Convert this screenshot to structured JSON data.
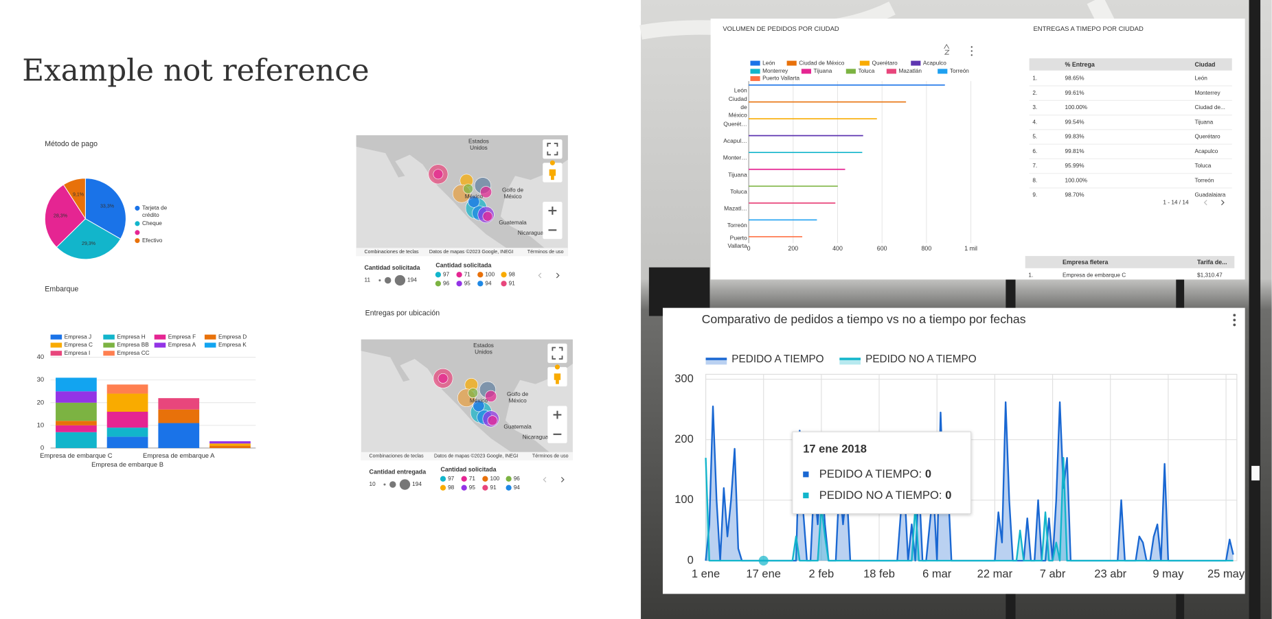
{
  "slide_title": "Example not reference",
  "chart_data": [
    {
      "type": "pie",
      "title": "Método de pago",
      "categories": [
        "Tarjeta de crédito",
        "Cheque",
        null,
        "Efectivo"
      ],
      "values": [
        33.3,
        29.3,
        28.3,
        9.1
      ],
      "value_labels": [
        "33,3%",
        "29,3%",
        "28,3%",
        "9,1%"
      ],
      "colors": [
        "#1a73e8",
        "#12b5cb",
        "#e52592",
        "#e8710a"
      ]
    },
    {
      "type": "stacked_bar",
      "title": "Embarque",
      "categories": [
        "Empresa de embarque C",
        "Empresa de embarque B",
        "Empresa de embarque A",
        null
      ],
      "series": [
        {
          "name": "Empresa J",
          "color": "#1a73e8",
          "values": [
            0,
            5,
            11,
            0
          ]
        },
        {
          "name": "Empresa H",
          "color": "#12b5cb",
          "values": [
            7,
            4,
            0,
            0
          ]
        },
        {
          "name": "Empresa F",
          "color": "#e52592",
          "values": [
            3,
            7,
            0,
            0
          ]
        },
        {
          "name": "Empresa D",
          "color": "#e8710a",
          "values": [
            2,
            0,
            6,
            1
          ]
        },
        {
          "name": "Empresa C",
          "color": "#f9ab00",
          "values": [
            0,
            8,
            0,
            1
          ]
        },
        {
          "name": "Empresa BB",
          "color": "#7cb342",
          "values": [
            8,
            0,
            0,
            0
          ]
        },
        {
          "name": "Empresa A",
          "color": "#9334e6",
          "values": [
            5,
            0,
            0,
            1
          ]
        },
        {
          "name": "Empresa K",
          "color": "#12a4f0",
          "values": [
            6,
            0,
            0,
            0
          ]
        },
        {
          "name": "Empresa I",
          "color": "#e8467c",
          "values": [
            0,
            0,
            5,
            0
          ]
        },
        {
          "name": "Empresa CC",
          "color": "#ff7f50",
          "values": [
            0,
            4,
            0,
            0
          ]
        }
      ],
      "ylim": [
        0,
        40
      ],
      "yticks": [
        0,
        10,
        20,
        30,
        40
      ],
      "grid": true
    },
    {
      "type": "hbar",
      "title": "VOLUMEN DE PEDIDOS POR CIUDAD",
      "categories": [
        "León",
        "Ciudad de México",
        "Querét…",
        "Acapul…",
        "Monter…",
        "Tijuana",
        "Toluca",
        "Mazatl…",
        "Torreón",
        "Puerto Vallarta"
      ],
      "legend": [
        "León",
        "Ciudad de México",
        "Querétaro",
        "Acapulco",
        "Monterrey",
        "Tijuana",
        "Toluca",
        "Mazatlán",
        "Torreón",
        "Puerto Vallarta"
      ],
      "colors": [
        "#1a73e8",
        "#e8710a",
        "#f9ab00",
        "#5e35b1",
        "#12b5cb",
        "#e52592",
        "#7cb342",
        "#e8467c",
        "#1ea0f0",
        "#ff7043"
      ],
      "values": [
        883,
        708,
        577,
        515,
        511,
        434,
        401,
        390,
        307,
        241
      ],
      "xlim": [
        0,
        1000
      ],
      "xticks": [
        0,
        200,
        400,
        600,
        800,
        {
          "value": 1000,
          "label": "1 mil"
        }
      ],
      "grid": true
    },
    {
      "type": "line",
      "title": "Comparativo de pedidos a tiempo vs no a tiempo por fechas",
      "x": [
        0,
        1,
        2,
        3,
        4,
        5,
        6,
        7,
        8,
        9,
        10,
        11,
        12,
        13,
        14,
        15,
        16,
        17,
        18,
        19,
        20,
        21,
        22,
        23,
        24,
        25,
        26,
        27,
        28,
        29,
        30,
        31,
        32,
        33,
        34,
        35,
        36,
        37,
        38,
        39,
        40,
        41,
        42,
        43,
        44,
        45,
        46,
        47,
        48,
        49,
        50,
        51,
        52,
        53,
        54,
        55,
        56,
        57,
        58,
        59,
        60,
        61,
        62,
        63,
        64,
        65,
        66,
        67,
        68,
        69,
        70,
        71,
        72,
        73,
        74,
        75,
        76,
        77,
        78,
        79,
        80,
        81,
        82,
        83,
        84,
        85,
        86,
        87,
        88,
        89,
        90,
        91,
        92,
        93,
        94,
        95,
        96,
        97,
        98,
        99,
        100,
        101,
        102,
        103,
        104,
        105,
        106,
        107,
        108,
        109,
        110,
        111,
        112,
        113,
        114,
        115,
        116,
        117,
        118,
        119,
        120,
        121,
        122,
        123,
        124,
        125,
        126,
        127,
        128,
        129,
        130,
        131,
        132,
        133,
        134,
        135,
        136,
        137,
        138,
        139,
        140,
        141,
        142,
        143,
        144,
        145,
        146
      ],
      "series": [
        {
          "name": "PEDIDO A TIEMPO",
          "color": "#1967d2",
          "values": [
            0,
            60,
            255,
            100,
            0,
            120,
            40,
            100,
            185,
            20,
            0,
            0,
            0,
            0,
            0,
            0,
            0,
            0,
            0,
            0,
            0,
            0,
            0,
            0,
            0,
            0,
            215,
            80,
            0,
            0,
            130,
            60,
            150,
            60,
            0,
            0,
            0,
            130,
            60,
            120,
            0,
            0,
            0,
            0,
            0,
            0,
            0,
            0,
            0,
            0,
            0,
            0,
            0,
            0,
            80,
            120,
            0,
            60,
            0,
            130,
            0,
            0,
            60,
            120,
            0,
            245,
            80,
            130,
            0,
            0,
            0,
            0,
            0,
            0,
            0,
            0,
            0,
            0,
            0,
            0,
            0,
            80,
            30,
            262,
            100,
            0,
            0,
            0,
            0,
            70,
            0,
            0,
            100,
            0,
            0,
            70,
            0,
            100,
            262,
            120,
            170,
            0,
            0,
            0,
            0,
            0,
            0,
            0,
            0,
            0,
            0,
            0,
            0,
            0,
            0,
            100,
            0,
            0,
            0,
            0,
            40,
            30,
            0,
            0,
            40,
            60,
            0,
            160,
            0,
            0,
            0,
            0,
            0,
            0,
            0,
            0,
            0,
            0,
            0,
            0,
            0,
            0,
            0,
            0,
            0,
            35,
            10
          ]
        },
        {
          "name": "PEDIDO NO A TIEMPO",
          "color": "#12b5cb",
          "values": [
            170,
            0,
            0,
            0,
            0,
            0,
            0,
            0,
            0,
            0,
            0,
            0,
            0,
            0,
            0,
            0,
            0,
            0,
            0,
            0,
            0,
            0,
            0,
            0,
            0,
            40,
            0,
            0,
            0,
            0,
            0,
            0,
            90,
            40,
            0,
            0,
            0,
            0,
            0,
            0,
            0,
            0,
            0,
            0,
            0,
            0,
            0,
            0,
            0,
            0,
            0,
            0,
            0,
            0,
            0,
            0,
            0,
            0,
            90,
            0,
            0,
            0,
            0,
            0,
            0,
            0,
            0,
            0,
            0,
            0,
            0,
            0,
            0,
            0,
            0,
            0,
            0,
            0,
            0,
            0,
            0,
            0,
            0,
            0,
            0,
            0,
            0,
            50,
            0,
            0,
            0,
            0,
            0,
            0,
            80,
            0,
            0,
            30,
            0,
            170,
            0,
            0,
            0,
            0,
            0,
            0,
            0,
            0,
            0,
            0,
            0,
            0,
            0,
            0,
            0,
            0,
            0,
            0,
            0,
            0,
            0,
            0,
            0,
            0,
            0,
            0,
            0,
            0,
            0,
            0,
            0,
            0,
            0,
            0,
            0,
            0,
            0,
            0,
            0,
            0,
            0,
            0,
            0,
            0,
            0,
            0,
            0
          ]
        }
      ],
      "xlim": [
        0,
        147
      ],
      "xticks": [
        {
          "value": 0,
          "label": "1 ene"
        },
        {
          "value": 16,
          "label": "17 ene"
        },
        {
          "value": 32,
          "label": "2 feb"
        },
        {
          "value": 48,
          "label": "18 feb"
        },
        {
          "value": 64,
          "label": "6 mar"
        },
        {
          "value": 80,
          "label": "22 mar"
        },
        {
          "value": 96,
          "label": "7 abr"
        },
        {
          "value": 112,
          "label": "23 abr"
        },
        {
          "value": 128,
          "label": "9 may"
        },
        {
          "value": 144,
          "label": "25 may"
        }
      ],
      "ylim": [
        0,
        300
      ],
      "yticks": [
        0,
        100,
        200,
        300
      ],
      "grid": true,
      "tooltip": {
        "date": "17 ene 2018",
        "items": [
          {
            "label": "PEDIDO A TIEMPO:",
            "value": 0
          },
          {
            "label": "PEDIDO NO A TIEMPO:",
            "value": 0
          }
        ]
      }
    }
  ],
  "maps": [
    {
      "labels": [
        "Estados Unidos",
        "Golfo de México",
        "México",
        "Guatemala",
        "Nicaragua"
      ],
      "attribution": [
        "Combinaciones de teclas",
        "Datos de mapas ©2023 Google, INEGI",
        "Términos de uso"
      ],
      "size_legend": {
        "title": "Cantidad solicitada",
        "min": 11,
        "max": 194
      },
      "color_legend": {
        "title": "Cantidad solicitada",
        "items": [
          {
            "label": 97,
            "color": "#12b5cb"
          },
          {
            "label": 71,
            "color": "#e52592"
          },
          {
            "label": 100,
            "color": "#e8710a"
          },
          {
            "label": 98,
            "color": "#f9ab00"
          },
          {
            "label": 96,
            "color": "#7cb342"
          },
          {
            "label": 95,
            "color": "#9334e6"
          },
          {
            "label": 94,
            "color": "#1e88e5"
          },
          {
            "label": 91,
            "color": "#e8467c"
          }
        ]
      }
    },
    {
      "title": "Entregas por ubicación",
      "labels": [
        "Estados Unidos",
        "Golfo de México",
        "México",
        "Guatemala",
        "Nicaragua"
      ],
      "attribution": [
        "Combinaciones de teclas",
        "Datos de mapas ©2023 Google, INEGI",
        "Términos de uso"
      ],
      "size_legend": {
        "title": "Cantidad entregada",
        "min": 10,
        "max": 194
      },
      "color_legend": {
        "title": "Cantidad solicitada",
        "items": [
          {
            "label": 97,
            "color": "#12b5cb"
          },
          {
            "label": 71,
            "color": "#e52592"
          },
          {
            "label": 100,
            "color": "#e8710a"
          },
          {
            "label": 96,
            "color": "#7cb342"
          },
          {
            "label": 98,
            "color": "#f9ab00"
          },
          {
            "label": 95,
            "color": "#9334e6"
          },
          {
            "label": 91,
            "color": "#e8467c"
          },
          {
            "label": 94,
            "color": "#1e88e5"
          }
        ]
      }
    }
  ],
  "tables": [
    {
      "title": "ENTREGAS A TIMEPO POR CIUDAD",
      "headers": [
        "% Entrega",
        "Ciudad"
      ],
      "rows": [
        [
          "1.",
          "98.65%",
          "León"
        ],
        [
          "2.",
          "99.61%",
          "Monterrey"
        ],
        [
          "3.",
          "100.00%",
          "Ciudad de..."
        ],
        [
          "4.",
          "99.54%",
          "Tijuana"
        ],
        [
          "5.",
          "99.83%",
          "Querétaro"
        ],
        [
          "6.",
          "99.81%",
          "Acapulco"
        ],
        [
          "7.",
          "95.99%",
          "Toluca"
        ],
        [
          "8.",
          "100.00%",
          "Torreón"
        ],
        [
          "9.",
          "98.70%",
          "Guadalajara"
        ]
      ],
      "pagination": "1 - 14 / 14"
    },
    {
      "headers": [
        "Empresa fletera",
        "Tarifa de..."
      ],
      "rows": [
        [
          "1.",
          "Empresa de embarque C",
          "$1,310.47"
        ]
      ]
    }
  ]
}
